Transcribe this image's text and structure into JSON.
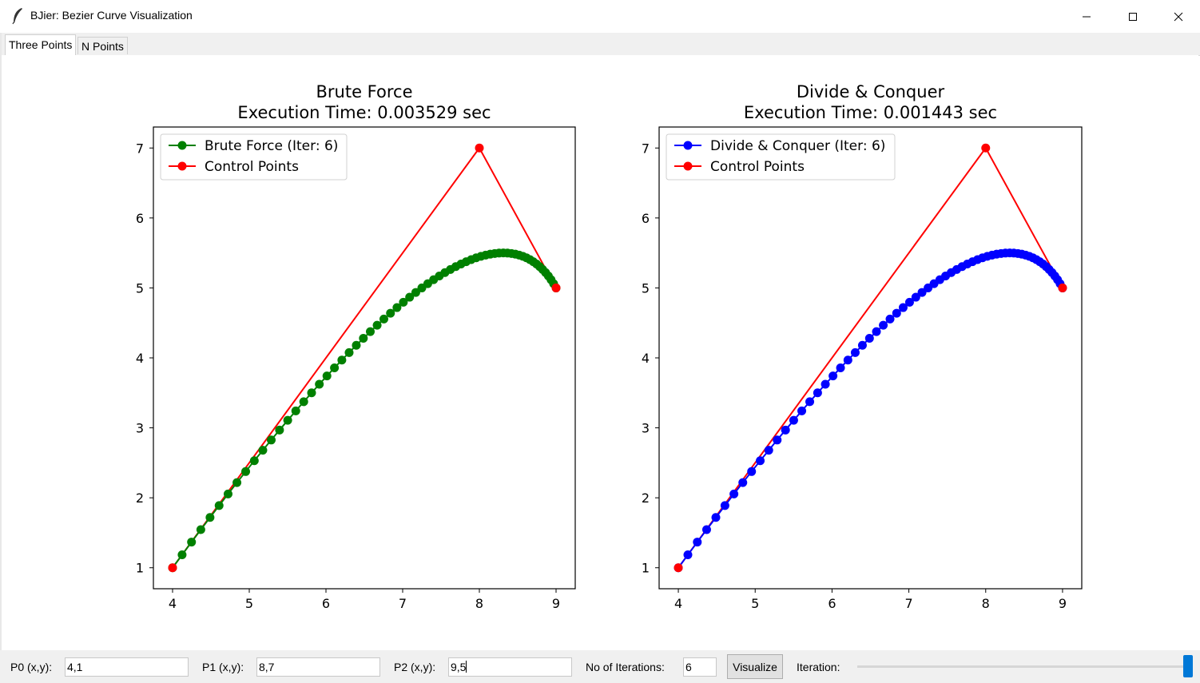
{
  "window": {
    "title": "BJier: Bezier Curve Visualization",
    "icon": "feather-icon",
    "controls": [
      "minimize-icon",
      "maximize-icon",
      "close-icon"
    ]
  },
  "tabs": [
    {
      "label": "Three Points",
      "active": true
    },
    {
      "label": "N Points",
      "active": false
    }
  ],
  "controls": {
    "p0_label": "P0 (x,y):",
    "p0_value": "4,1",
    "p1_label": "P1 (x,y):",
    "p1_value": "8,7",
    "p2_label": "P2 (x,y):",
    "p2_value": "9,5",
    "iterations_label": "No of Iterations:",
    "iterations_value": "6",
    "visualize_label": "Visualize",
    "iteration_label": "Iteration:",
    "iteration_slider_level": 1.0
  },
  "chart_data": [
    {
      "type": "line",
      "title": "Brute Force",
      "subtitle": "Execution Time: 0.003529 sec",
      "xlabel": "",
      "ylabel": "",
      "xticks": [
        4,
        5,
        6,
        7,
        8,
        9
      ],
      "yticks": [
        1,
        2,
        3,
        4,
        5,
        6,
        7
      ],
      "legend_position": "top-left",
      "series": [
        {
          "name": "Brute Force (Iter: 6)",
          "color": "#008000",
          "kind": "bezier-points",
          "points": 65
        },
        {
          "name": "Control Points",
          "color": "#ff0000",
          "kind": "control",
          "x": [
            4,
            8,
            9
          ],
          "y": [
            1,
            7,
            5
          ]
        }
      ]
    },
    {
      "type": "line",
      "title": "Divide & Conquer",
      "subtitle": "Execution Time: 0.001443 sec",
      "xlabel": "",
      "ylabel": "",
      "xticks": [
        4,
        5,
        6,
        7,
        8,
        9
      ],
      "yticks": [
        1,
        2,
        3,
        4,
        5,
        6,
        7
      ],
      "legend_position": "top-left",
      "series": [
        {
          "name": "Divide & Conquer (Iter: 6)",
          "color": "#0000ff",
          "kind": "bezier-points",
          "points": 65
        },
        {
          "name": "Control Points",
          "color": "#ff0000",
          "kind": "control",
          "x": [
            4,
            8,
            9
          ],
          "y": [
            1,
            7,
            5
          ]
        }
      ]
    }
  ]
}
